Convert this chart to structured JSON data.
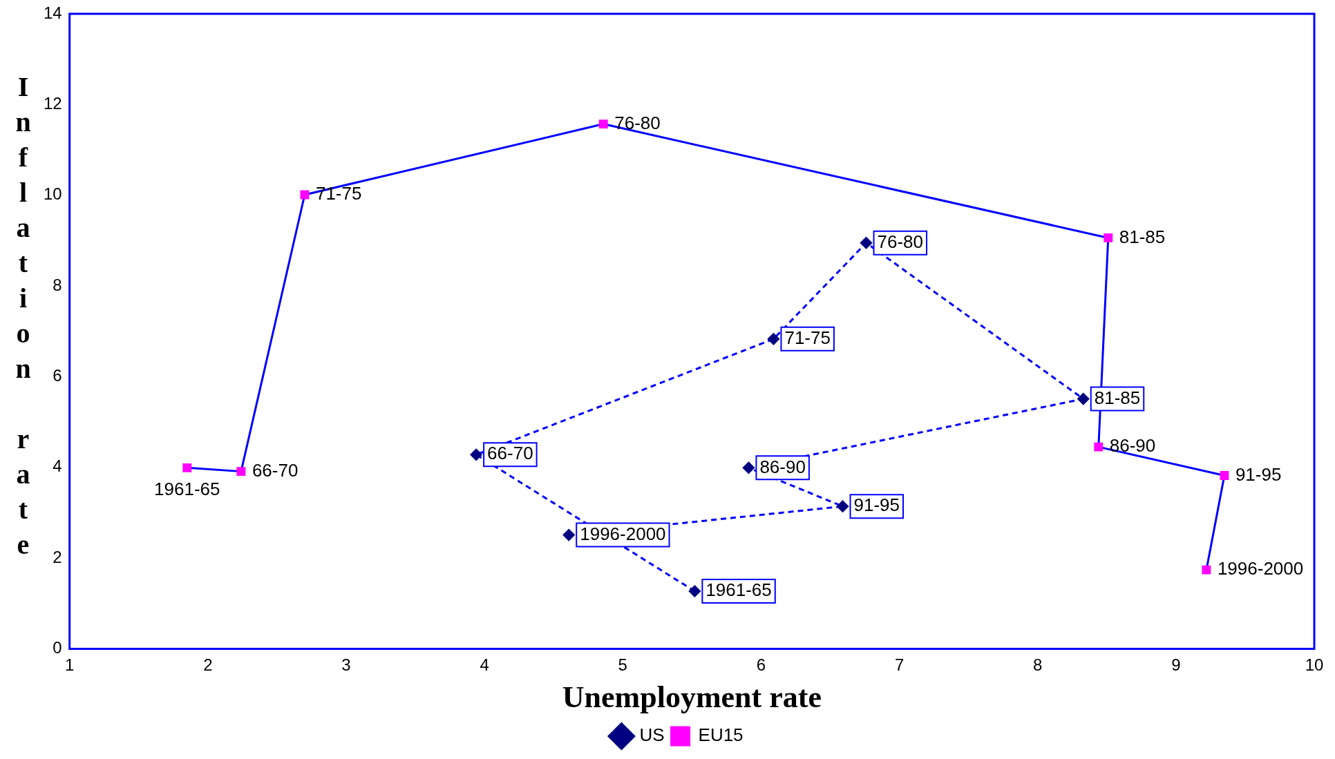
{
  "chart_data": {
    "type": "line",
    "xlabel": "Unemployment rate",
    "ylabel": "Inflation rate",
    "xlim": [
      1,
      10
    ],
    "xticks": [
      1,
      2,
      3,
      4,
      5,
      6,
      7,
      8,
      9,
      10
    ],
    "ylim": [
      0,
      14
    ],
    "yticks": [
      0,
      2,
      4,
      6,
      8,
      10,
      12,
      14
    ],
    "grid": false,
    "legend": "bottom",
    "series": [
      {
        "name": "US",
        "color": "#0000ff",
        "colors": [
          "#000080",
          "#000080",
          "#000080",
          "#000080",
          "#000080",
          "#000080",
          "#000080",
          "#000080"
        ],
        "marker": "diamond",
        "line_style": "dashed",
        "x": [
          5.52,
          3.94,
          6.09,
          6.76,
          8.33,
          5.91,
          6.59,
          4.61
        ],
        "values": [
          1.27,
          4.28,
          6.83,
          8.95,
          5.51,
          3.99,
          3.14,
          2.51
        ],
        "value_labels": [
          "1961-65",
          "66-70",
          "71-75",
          "76-80",
          "81-85",
          "86-90",
          "91-95",
          "1996-2000"
        ]
      },
      {
        "name": "EU15",
        "color": "#0000ff",
        "colors": [
          "#ff00ff",
          "#ff00ff",
          "#ff00ff",
          "#ff00ff",
          "#ff00ff",
          "#ff00ff",
          "#ff00ff",
          "#ff00ff"
        ],
        "marker": "square",
        "line_style": "solid",
        "x": [
          1.85,
          2.24,
          2.7,
          4.86,
          8.51,
          8.44,
          9.35,
          9.22
        ],
        "values": [
          3.99,
          3.91,
          10.01,
          11.57,
          9.06,
          4.45,
          3.82,
          1.74
        ],
        "value_labels": [
          "1961-65",
          "66-70",
          "71-75",
          "76-80",
          "81-85",
          "86-90",
          "91-95",
          "1996-2000"
        ]
      }
    ]
  }
}
